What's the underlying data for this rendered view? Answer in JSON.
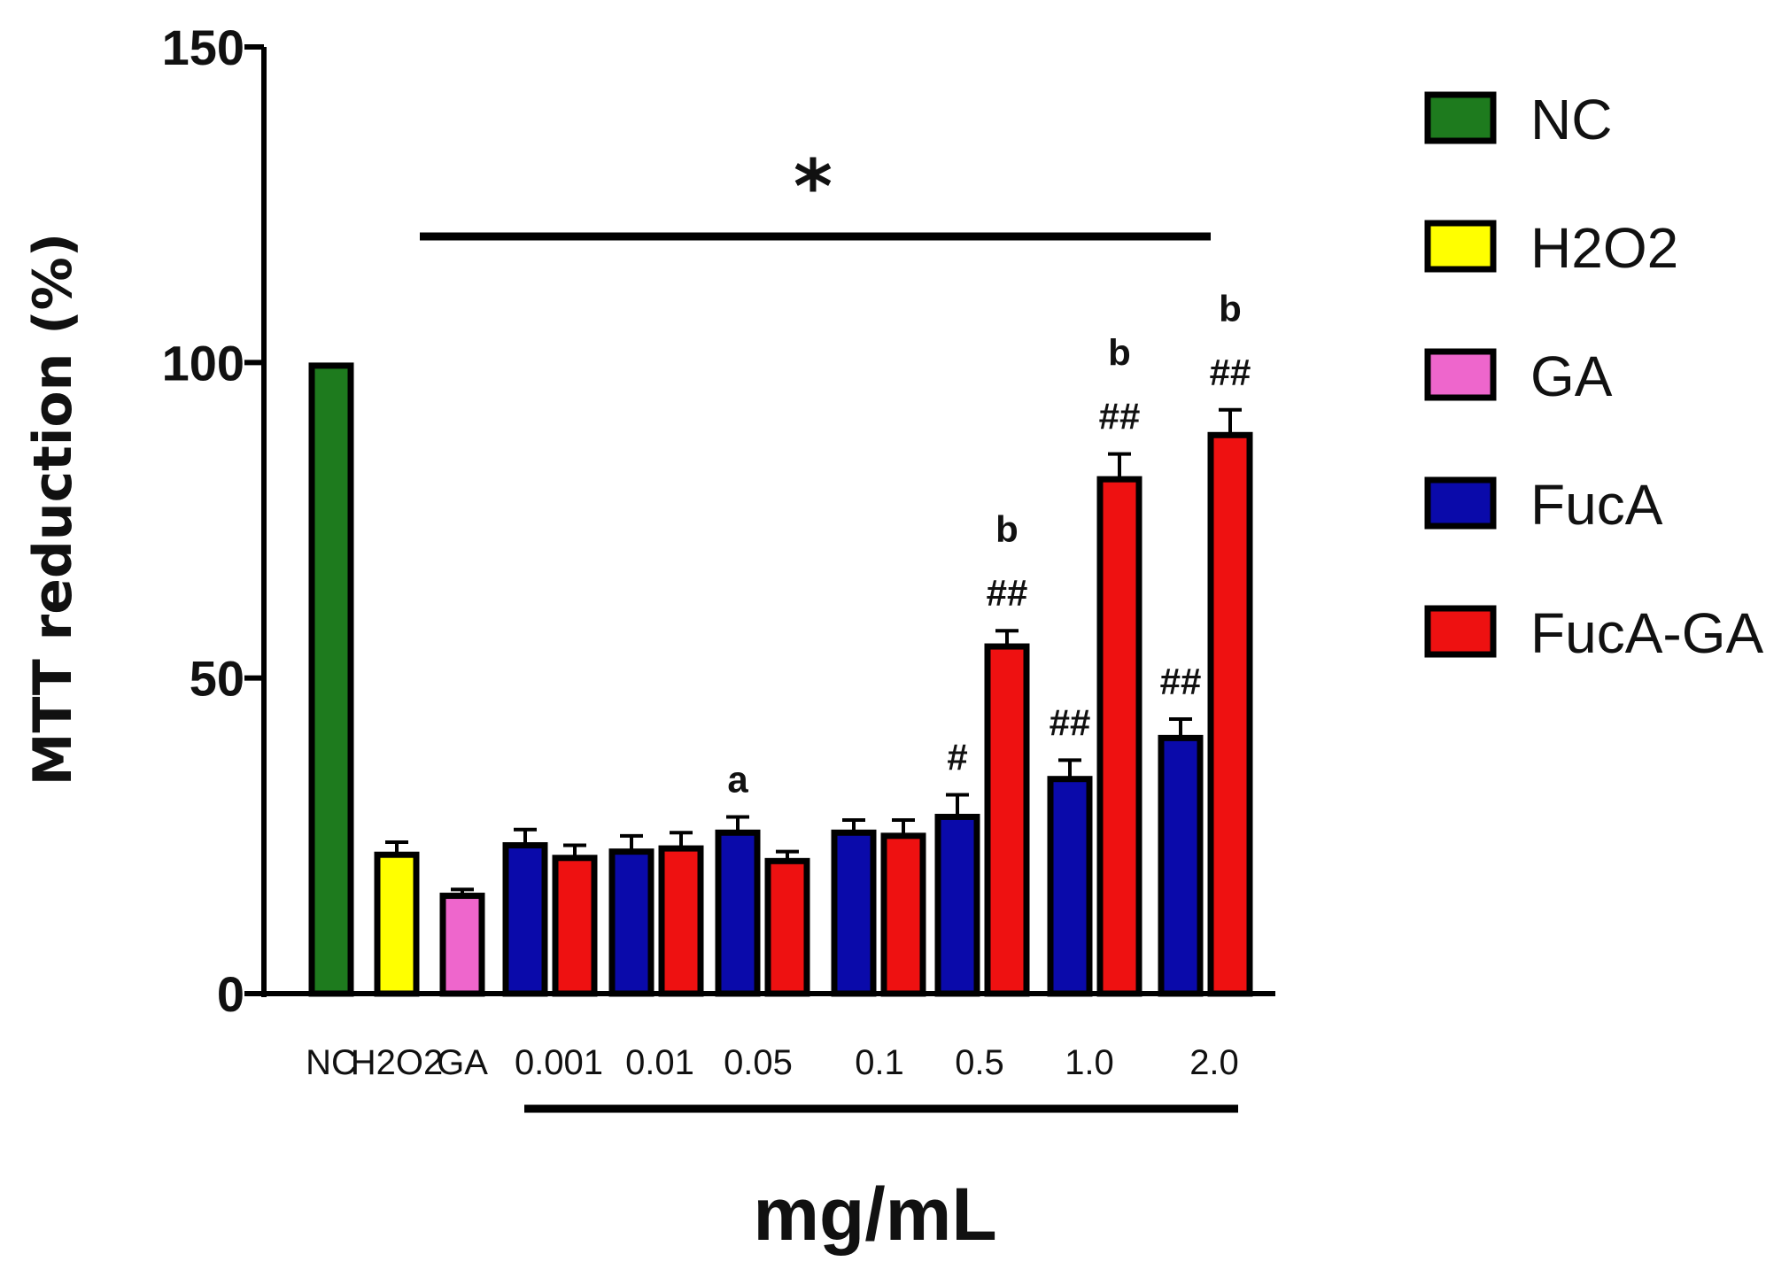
{
  "chart_data": {
    "type": "bar",
    "title": "",
    "ylabel": "MTT reduction (%)",
    "xlabel": "mg/mL",
    "ylim": [
      0,
      150
    ],
    "yticks": [
      0,
      50,
      100,
      150
    ],
    "legend_position": "right",
    "significance_marker": "*",
    "legend": [
      {
        "name": "NC",
        "color": "#1e7b1e"
      },
      {
        "name": "H2O2",
        "color": "#ffff00"
      },
      {
        "name": "GA",
        "color": "#ee66cc"
      },
      {
        "name": "FucA",
        "color": "#0a0aaa"
      },
      {
        "name": "FucA-GA",
        "color": "#ee1111"
      }
    ],
    "controls": [
      {
        "category": "NC",
        "series": "NC",
        "value": 99.5,
        "error": 0
      },
      {
        "category": "H2O2",
        "series": "H2O2",
        "value": 22,
        "error": 2
      },
      {
        "category": "GA",
        "series": "GA",
        "value": 15.5,
        "error": 1
      }
    ],
    "concentrations": [
      "0.001",
      "0.01",
      "0.05",
      "0.1",
      "0.5",
      "1.0",
      "2.0"
    ],
    "series": [
      {
        "name": "FucA",
        "values": [
          23.5,
          22.5,
          25.5,
          25.5,
          28,
          34,
          40.5
        ],
        "errors": [
          2.5,
          2.5,
          2.5,
          2,
          3.5,
          3,
          3
        ],
        "annotations": [
          "",
          "",
          "a",
          "",
          "#",
          "##",
          "##"
        ]
      },
      {
        "name": "FucA-GA",
        "values": [
          21.5,
          23,
          21,
          25,
          55,
          81.5,
          88.5
        ],
        "errors": [
          2,
          2.5,
          1.5,
          2.5,
          2.5,
          4,
          4
        ],
        "annotations": [
          [],
          [],
          [],
          [],
          [
            "b",
            "##"
          ],
          [
            "b",
            "##"
          ],
          [
            "b",
            "##"
          ]
        ]
      }
    ]
  }
}
